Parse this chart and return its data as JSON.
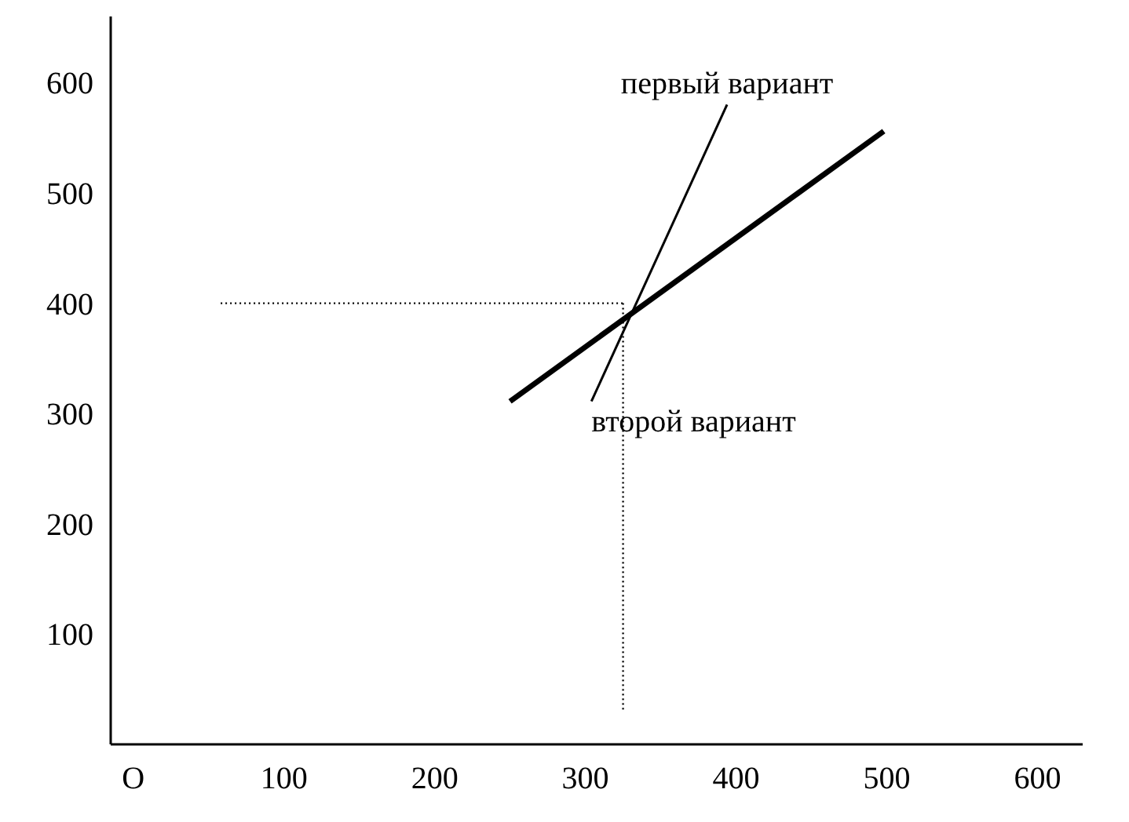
{
  "chart_data": {
    "type": "line",
    "xlim": [
      -15,
      630
    ],
    "ylim": [
      0,
      660
    ],
    "xticks": [
      {
        "value": 0,
        "label": "O"
      },
      100,
      200,
      300,
      400,
      500,
      600
    ],
    "yticks": [
      100,
      200,
      300,
      400,
      500,
      600
    ],
    "grid": false,
    "marker": "none",
    "series": [
      {
        "color": "#000000",
        "x": [
          304,
          394
        ],
        "values": [
          311,
          580
        ],
        "line_style": "solid"
      },
      {
        "color": "#000000",
        "x": [
          250,
          498
        ],
        "values": [
          311,
          556
        ],
        "line_style": "solid"
      },
      {
        "color": "#000000",
        "x": [
          58,
          325
        ],
        "values": [
          400,
          400
        ],
        "line_style": "dotted"
      },
      {
        "color": "#000000",
        "x": [
          325,
          325
        ],
        "values": [
          400,
          31
        ],
        "line_style": "dotted"
      }
    ],
    "annotations": [
      {
        "text": "первый вариант",
        "x": 394,
        "y": 580
      },
      {
        "text": "второй вариант",
        "x": 304,
        "y": 311
      }
    ]
  }
}
